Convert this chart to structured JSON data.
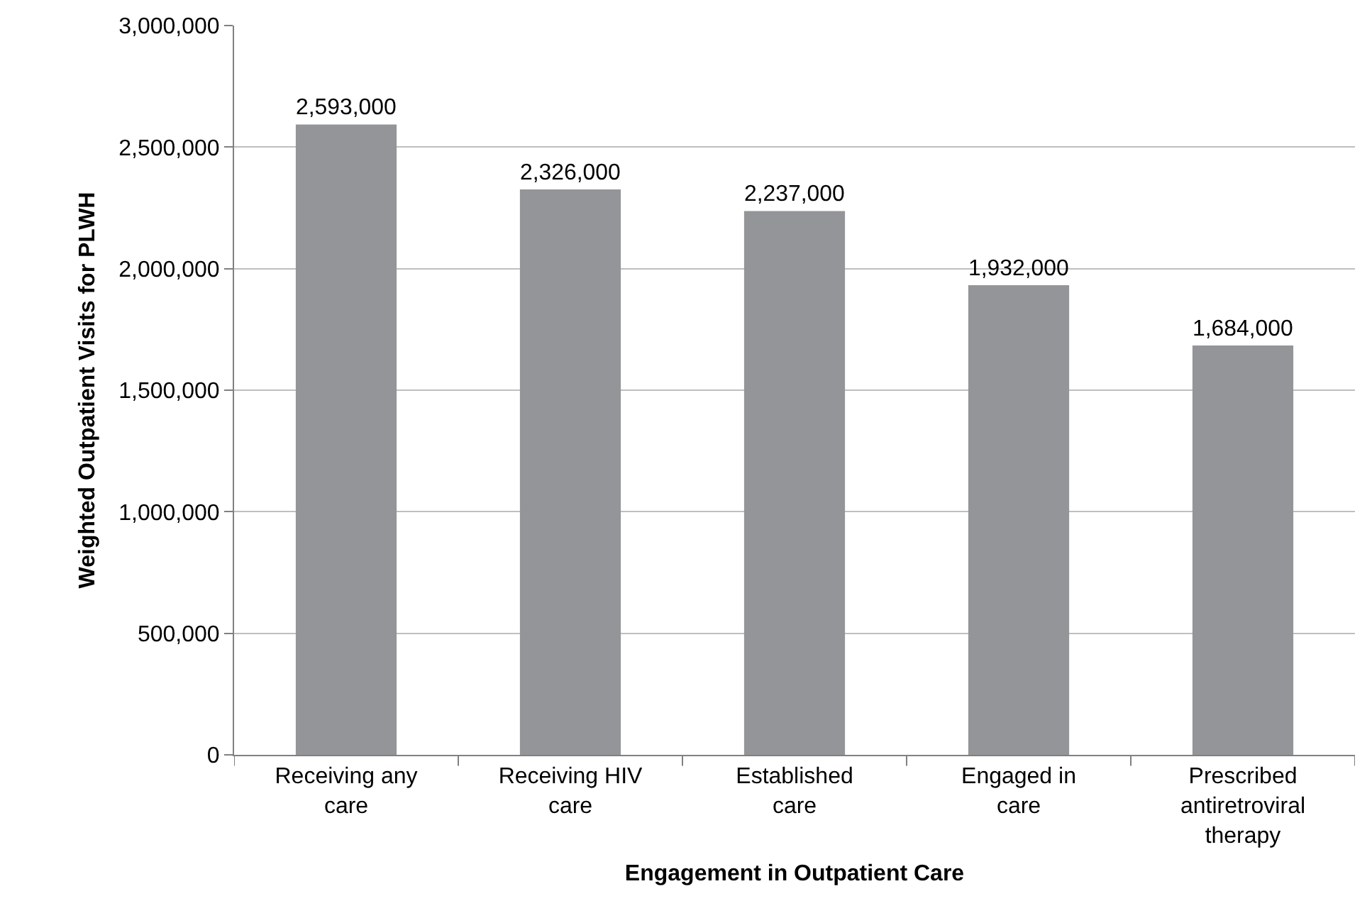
{
  "chart_data": {
    "type": "bar",
    "xlabel": "Engagement in Outpatient Care",
    "ylabel": "Weighted Outpatient Visits for PLWH",
    "categories": [
      "Receiving any care",
      "Receiving HIV care",
      "Established care",
      "Engaged in care",
      "Prescribed antiretroviral therapy"
    ],
    "values": [
      2593000,
      2326000,
      2237000,
      1932000,
      1684000
    ],
    "value_labels": [
      "2,593,000",
      "2,326,000",
      "2,237,000",
      "1,932,000",
      "1,684,000"
    ],
    "color": "#939598",
    "ylim": [
      0,
      3000000
    ],
    "yticks": [
      {
        "value": 0,
        "label": "0"
      },
      {
        "value": 500000,
        "label": "500,000"
      },
      {
        "value": 1000000,
        "label": "1,000,000"
      },
      {
        "value": 1500000,
        "label": "1,500,000"
      },
      {
        "value": 2000000,
        "label": "2,000,000"
      },
      {
        "value": 2500000,
        "label": "2,500,000"
      },
      {
        "value": 3000000,
        "label": "3,000,000"
      }
    ],
    "grid": "y"
  }
}
